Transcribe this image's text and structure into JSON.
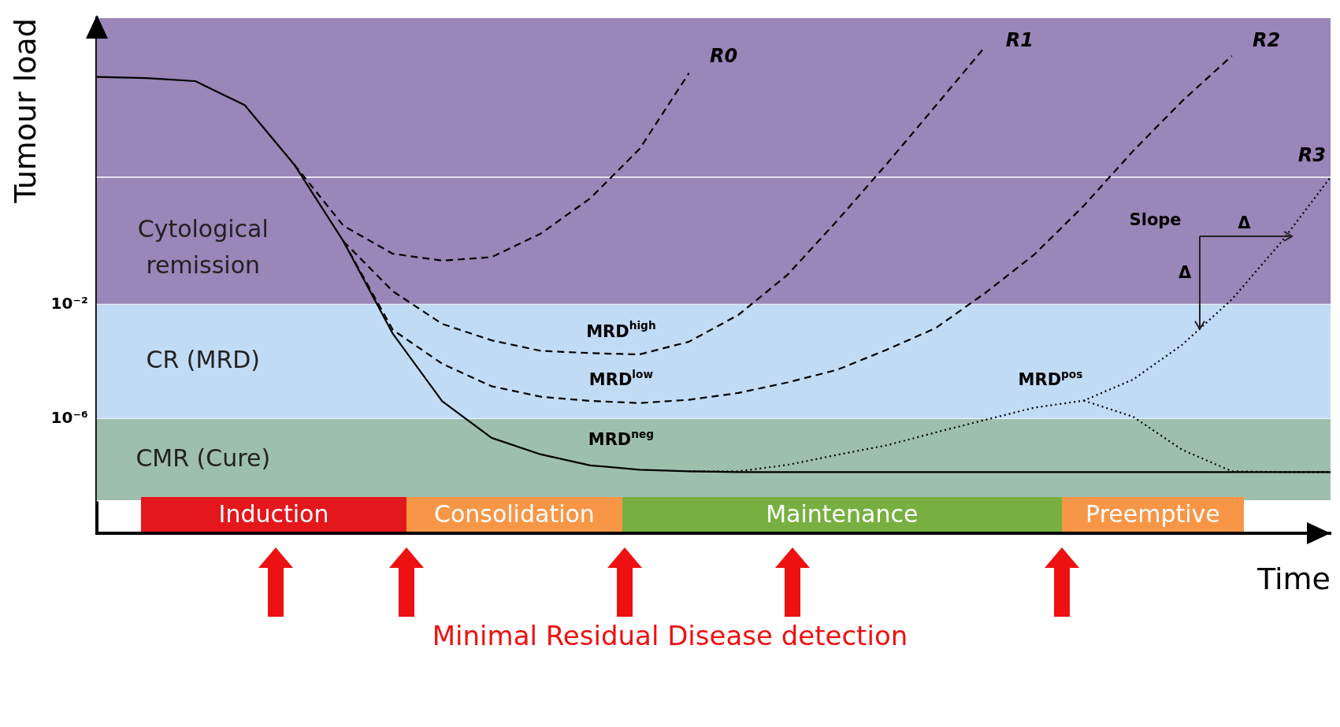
{
  "chart_data": {
    "type": "line",
    "xlabel": "Time",
    "ylabel": "Tumour load",
    "log": "y",
    "ylim": [
      1e-10,
      100000000.0
    ],
    "tick_labels": "y",
    "yticks": [
      {
        "value": 0.01,
        "label": "10⁻²"
      },
      {
        "value": 1e-06,
        "label": "10⁻⁶"
      }
    ],
    "categories": [
      null,
      null,
      null,
      null,
      null,
      null,
      null,
      null,
      null,
      null,
      null,
      null,
      null,
      null,
      null,
      null,
      null,
      null,
      null,
      null,
      null,
      null,
      null,
      null,
      null,
      null
    ],
    "series": [
      {
        "color": "#000000",
        "line_style": "solid",
        "values": [
          890000.0,
          810000.0,
          630000.0,
          91000.0,
          780,
          1.6,
          0.00095,
          4.2e-06,
          2.2e-07,
          5.8e-08,
          2.4e-08,
          1.7e-08,
          1.5e-08,
          1.4e-08,
          1.4e-08,
          1.4e-08,
          1.4e-08,
          1.4e-08,
          1.4e-08,
          1.4e-08,
          1.4e-08,
          1.4e-08,
          1.4e-08,
          1.4e-08,
          1.4e-08,
          1.4e-08
        ]
      },
      {
        "name": "R0",
        "color": "#000000",
        "line_style": "dashed",
        "values": [
          null,
          null,
          null,
          null,
          780,
          5.6,
          0.59,
          0.34,
          0.45,
          3.0,
          51,
          2700.0,
          1200000.0,
          null,
          null,
          null,
          null,
          null,
          null,
          null,
          null,
          null,
          null,
          null,
          null,
          null
        ]
      },
      {
        "name": "R1",
        "color": "#000000",
        "line_style": "dashed",
        "values": [
          null,
          null,
          null,
          null,
          null,
          1.6,
          0.029,
          0.0021,
          0.00056,
          0.00024,
          0.0002,
          0.00018,
          0.0005,
          0.0043,
          0.11,
          8.3,
          780,
          87000.0,
          10000000.0,
          null,
          null,
          null,
          null,
          null,
          null,
          null
        ]
      },
      {
        "name": "R2",
        "color": "#000000",
        "line_style": "dashed",
        "values": [
          null,
          null,
          null,
          null,
          null,
          1.6,
          0.0013,
          8.5e-05,
          1.4e-05,
          6e-06,
          4.3e-06,
          3.6e-06,
          4.7e-06,
          8.1e-06,
          1.9e-05,
          5.2e-05,
          0.00026,
          0.0015,
          0.025,
          0.56,
          28,
          2300.0,
          130000.0,
          4800000.0,
          null,
          null
        ]
      },
      {
        "name": "R3",
        "color": "#000000",
        "line_style": "dotted",
        "values": [
          null,
          null,
          null,
          null,
          null,
          null,
          null,
          null,
          null,
          null,
          null,
          null,
          1.5e-08,
          1.5e-08,
          2.5e-08,
          5.6e-08,
          1.2e-07,
          3.4e-07,
          9.3e-07,
          2.5e-06,
          4.4e-06,
          2.4e-05,
          0.0004,
          0.015,
          1.5,
          280
        ]
      },
      {
        "color": "#000000",
        "line_style": "dotted",
        "values": [
          null,
          null,
          null,
          null,
          null,
          null,
          null,
          null,
          null,
          null,
          null,
          null,
          null,
          null,
          null,
          null,
          null,
          null,
          null,
          null,
          4.4e-06,
          1.2e-06,
          8.3e-08,
          1.5e-08,
          1.4e-08,
          1.4e-08
        ]
      }
    ],
    "bands": [
      {
        "axis": "y",
        "from": 0.01,
        "to": 100000000.0,
        "label": "Cytological remission",
        "color": "#9a86b9"
      },
      {
        "axis": "y",
        "from": 1e-06,
        "to": 0.01,
        "label": "CR (MRD)",
        "color": "#c2dbf5"
      },
      {
        "axis": "y",
        "from": 1.4e-09,
        "to": 1e-06,
        "label": "CMR (Cure)",
        "color": "#9fbfae"
      }
    ],
    "ref_lines": [
      {
        "axis": "y",
        "value": 280,
        "color": "#ffffff"
      }
    ],
    "annotations": [
      "MRD$^{high}$",
      "MRD$^{low}$",
      "MRD$^{neg}$",
      "MRD$^{pos}$",
      "Slope",
      "Δ",
      "Δ",
      "Induction",
      "Consolidation",
      "Maintenance",
      "Preemptive",
      "Minimal Residual Disease detection"
    ]
  }
}
